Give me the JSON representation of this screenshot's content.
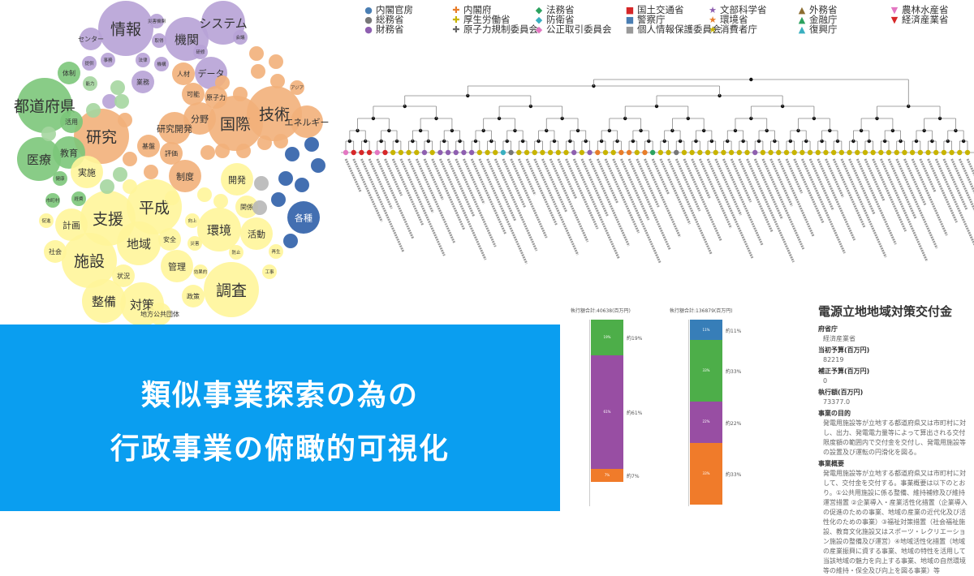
{
  "banner": {
    "line1": "類似事業探索の為の",
    "line2": "行政事業の俯瞰的可視化"
  },
  "legend": [
    {
      "label": "内閣官房",
      "color": "#4a7eb3",
      "marker": "●"
    },
    {
      "label": "総務省",
      "color": "#777777",
      "marker": "●"
    },
    {
      "label": "財務省",
      "color": "#8e5fb0",
      "marker": "●"
    },
    {
      "label": "内閣府",
      "color": "#e87d2a",
      "marker": "✚"
    },
    {
      "label": "厚生労働省",
      "color": "#c8b400",
      "marker": "✚"
    },
    {
      "label": "原子力規制委員会",
      "color": "#666666",
      "marker": "✚"
    },
    {
      "label": "法務省",
      "color": "#2ca25f",
      "marker": "◆"
    },
    {
      "label": "防衛省",
      "color": "#3aafc0",
      "marker": "◆"
    },
    {
      "label": "公正取引委員会",
      "color": "#e377c2",
      "marker": "◆"
    },
    {
      "label": "国土交通省",
      "color": "#d62728",
      "marker": "■"
    },
    {
      "label": "警察庁",
      "color": "#4a7eb3",
      "marker": "■"
    },
    {
      "label": "個人情報保護委員会",
      "color": "#999999",
      "marker": "■"
    },
    {
      "label": "文部科学省",
      "color": "#8e5fb0",
      "marker": "★"
    },
    {
      "label": "環境省",
      "color": "#e87d2a",
      "marker": "★"
    },
    {
      "label": "消費者庁",
      "color": "#c8b400",
      "marker": "★"
    },
    {
      "label": "外務省",
      "color": "#8c6d31",
      "marker": "▲"
    },
    {
      "label": "金融庁",
      "color": "#2ca25f",
      "marker": "▲"
    },
    {
      "label": "復興庁",
      "color": "#3aafc0",
      "marker": "▲"
    },
    {
      "label": "農林水産省",
      "color": "#e377c2",
      "marker": "▼"
    },
    {
      "label": "経済産業省",
      "color": "#d62728",
      "marker": "▼"
    }
  ],
  "bubbles": [
    {
      "t": "情報",
      "c": "#b7a2d6",
      "s": "xl"
    },
    {
      "t": "機関",
      "c": "#b7a2d6",
      "s": "l"
    },
    {
      "t": "システム",
      "c": "#b7a2d6",
      "s": "l"
    },
    {
      "t": "センター",
      "c": "#b7a2d6",
      "s": "s"
    },
    {
      "t": "災害機関",
      "c": "#b7a2d6",
      "s": "xs"
    },
    {
      "t": "取得",
      "c": "#b7a2d6",
      "s": "xs"
    },
    {
      "t": "会議",
      "c": "#b7a2d6",
      "s": "xs"
    },
    {
      "t": "提供",
      "c": "#b7a2d6",
      "s": "xs"
    },
    {
      "t": "事務",
      "c": "#b7a2d6",
      "s": "xs"
    },
    {
      "t": "法律",
      "c": "#b7a2d6",
      "s": "xs"
    },
    {
      "t": "機構",
      "c": "#b7a2d6",
      "s": "xs"
    },
    {
      "t": "研修",
      "c": "#b7a2d6",
      "s": "xs"
    },
    {
      "t": "データ",
      "c": "#b7a2d6",
      "s": "m"
    },
    {
      "t": "人材",
      "c": "#f2b07a",
      "s": "s"
    },
    {
      "t": "業務",
      "c": "#b7a2d6",
      "s": "s"
    },
    {
      "t": "能力",
      "c": "#a5d6a0",
      "s": "xs"
    },
    {
      "t": "体制",
      "c": "#7cc67a",
      "s": "s"
    },
    {
      "t": "都道府県",
      "c": "#7cc67a",
      "s": "xl"
    },
    {
      "t": "研究",
      "c": "#f2b07a",
      "s": "xl"
    },
    {
      "t": "国際",
      "c": "#f2b07a",
      "s": "xl"
    },
    {
      "t": "技術",
      "c": "#f2b07a",
      "s": "xl"
    },
    {
      "t": "医療",
      "c": "#7cc67a",
      "s": "l"
    },
    {
      "t": "教育",
      "c": "#7cc67a",
      "s": "m"
    },
    {
      "t": "活用",
      "c": "#7cc67a",
      "s": "s"
    },
    {
      "t": "エネルギー",
      "c": "#f2b07a",
      "s": "m"
    },
    {
      "t": "アジア",
      "c": "#f2b07a",
      "s": "xs"
    },
    {
      "t": "分野",
      "c": "#f2b07a",
      "s": "m"
    },
    {
      "t": "研究開発",
      "c": "#f2b07a",
      "s": "m"
    },
    {
      "t": "可能",
      "c": "#f2b07a",
      "s": "s"
    },
    {
      "t": "原子力",
      "c": "#f2b07a",
      "s": "s"
    },
    {
      "t": "実施",
      "c": "#fff59a",
      "s": "m"
    },
    {
      "t": "支援",
      "c": "#fff59a",
      "s": "xl"
    },
    {
      "t": "平成",
      "c": "#fff59a",
      "s": "xl"
    },
    {
      "t": "施設",
      "c": "#fff59a",
      "s": "xl"
    },
    {
      "t": "地域",
      "c": "#fff59a",
      "s": "l"
    },
    {
      "t": "環境",
      "c": "#fff59a",
      "s": "l"
    },
    {
      "t": "開発",
      "c": "#fff59a",
      "s": "m"
    },
    {
      "t": "関係",
      "c": "#fff59a",
      "s": "s"
    },
    {
      "t": "活動",
      "c": "#fff59a",
      "s": "m"
    },
    {
      "t": "調査",
      "c": "#fff59a",
      "s": "xl"
    },
    {
      "t": "対策",
      "c": "#fff59a",
      "s": "l"
    },
    {
      "t": "整備",
      "c": "#fff59a",
      "s": "l"
    },
    {
      "t": "管理",
      "c": "#fff59a",
      "s": "m"
    },
    {
      "t": "安全",
      "c": "#fff59a",
      "s": "s"
    },
    {
      "t": "計画",
      "c": "#fff59a",
      "s": "m"
    },
    {
      "t": "社会",
      "c": "#fff59a",
      "s": "s"
    },
    {
      "t": "状況",
      "c": "#fff59a",
      "s": "s"
    },
    {
      "t": "政策",
      "c": "#fff59a",
      "s": "s"
    },
    {
      "t": "制度",
      "c": "#f2b07a",
      "s": "m"
    },
    {
      "t": "基盤",
      "c": "#f2b07a",
      "s": "s"
    },
    {
      "t": "評価",
      "c": "#f2b07a",
      "s": "s"
    },
    {
      "t": "各種",
      "c": "#2f5fa8",
      "s": "m"
    },
    {
      "t": "地方公共団体",
      "c": "#fff59a",
      "s": "s"
    },
    {
      "t": "経費",
      "c": "#7cc67a",
      "s": "xs"
    },
    {
      "t": "促進",
      "c": "#fff59a",
      "s": "xs"
    },
    {
      "t": "市町村",
      "c": "#7cc67a",
      "s": "xs"
    },
    {
      "t": "健康",
      "c": "#7cc67a",
      "s": "xs"
    },
    {
      "t": "防止",
      "c": "#fff59a",
      "s": "xs"
    },
    {
      "t": "向上",
      "c": "#fff59a",
      "s": "xs"
    },
    {
      "t": "災害",
      "c": "#fff59a",
      "s": "xs"
    },
    {
      "t": "効果的",
      "c": "#fff59a",
      "s": "xs"
    },
    {
      "t": "再生",
      "c": "#fff59a",
      "s": "xs"
    },
    {
      "t": "工事",
      "c": "#fff59a",
      "s": "xs"
    }
  ],
  "dendro_colors": [
    "#e377c2",
    "#d62728",
    "#d62728",
    "#d62728",
    "#e377c2",
    "#d62728",
    "#c8b400",
    "#c8b400",
    "#c8b400",
    "#c8b400",
    "#8e5fb0",
    "#c8b400",
    "#8e5fb0",
    "#8e5fb0",
    "#8e5fb0",
    "#8e5fb0",
    "#8e5fb0",
    "#c8b400",
    "#c8b400",
    "#c8b400",
    "#3aafc0",
    "#777777",
    "#c8b400",
    "#c8b400",
    "#c8b400",
    "#c8b400",
    "#c8b400",
    "#c8b400",
    "#c8b400",
    "#8e5fb0",
    "#c8b400",
    "#8e5fb0",
    "#e87d2a",
    "#c8b400",
    "#c8b400",
    "#e87d2a",
    "#e87d2a",
    "#c8b400",
    "#e87d2a",
    "#2ca25f",
    "#c8b400",
    "#c8b400",
    "#777777",
    "#c8b400",
    "#c8b400",
    "#c8b400",
    "#c8b400",
    "#c8b400",
    "#c8b400",
    "#c8b400",
    "#c8b400",
    "#c8b400",
    "#8e5fb0",
    "#c8b400",
    "#c8b400",
    "#c8b400",
    "#c8b400",
    "#c8b400",
    "#c8b400",
    "#c8b400",
    "#c8b400",
    "#c8b400",
    "#c8b400",
    "#c8b400",
    "#c8b400",
    "#c8b400",
    "#c8b400",
    "#c8b400",
    "#c8b400",
    "#c8b400",
    "#c8b400",
    "#c8b400",
    "#c8b400",
    "#c8b400",
    "#c8b400",
    "#c8b400",
    "#c8b400",
    "#c8b400",
    "#c8b400",
    "#c8b400"
  ],
  "bars": [
    {
      "title": "執行額合計:40638(百万円)",
      "segments": [
        {
          "value": 19,
          "color": "#4dae49",
          "label": "19%",
          "pct": "約19%"
        },
        {
          "value": 61,
          "color": "#984ea3",
          "label": "61%",
          "pct": "約61%"
        },
        {
          "value": 7,
          "color": "#f07b2a",
          "label": "7%",
          "pct": "約7%"
        }
      ]
    },
    {
      "title": "執行額合計:136879(百万円)",
      "segments": [
        {
          "value": 11,
          "color": "#377eb8",
          "label": "11%",
          "pct": "約11%"
        },
        {
          "value": 33,
          "color": "#4dae49",
          "label": "33%",
          "pct": "約33%"
        },
        {
          "value": 22,
          "color": "#984ea3",
          "label": "22%",
          "pct": "約22%"
        },
        {
          "value": 33,
          "color": "#f07b2a",
          "label": "33%",
          "pct": "約33%"
        }
      ]
    }
  ],
  "detail": {
    "title": "電源立地地域対策交付金",
    "ministry_key": "府省庁",
    "ministry_val": "経済産業省",
    "budget_key": "当初予算(百万円)",
    "budget_val": "82219",
    "supp_key": "補正予算(百万円)",
    "supp_val": "0",
    "exec_key": "執行額(百万円)",
    "exec_val": "73377.0",
    "purpose_key": "事業の目的",
    "purpose_val": "発電用施設等が立地する都道府県又は市町村に対し、出力、発電電力量等によって算出される交付限度額の範囲内で交付金を交付し、発電用施設等の設置及び運転の円滑化を図る。",
    "overview_key": "事業概要",
    "overview_val": "発電用施設等が立地する都道府県又は市町村に対して、交付金を交付する。事業概要は以下のとおり。①公共用施設に係る整備、維持補修及び維持運営措置 ②企業導入・産業活性化措置（企業導入の促進のための事業、地域の産業の近代化及び活性化のための事業）③福祉対策措置（社会福祉施設、教育文化施設又はスポーツ・レクリエーション施設の整備及び運営）④地域活性化措置（地域の産業振興に資する事業、地域の特性を活用して当該地域の魅力を向上する事業、地域の自然環境等の維持・保全及び向上を図る事業）等"
  }
}
